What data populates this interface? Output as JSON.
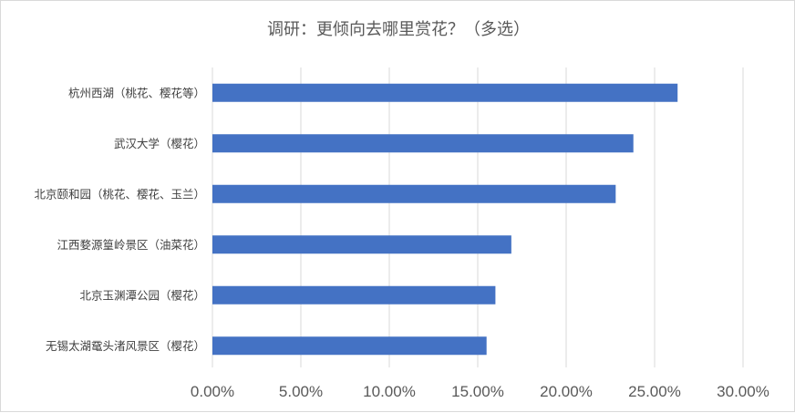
{
  "chart_data": {
    "type": "bar",
    "orientation": "horizontal",
    "title": "调研：更倾向去哪里赏花？（多选）",
    "categories": [
      "杭州西湖（桃花、樱花等）",
      "武汉大学（樱花）",
      "北京颐和园（桃花、樱花、玉兰）",
      "江西婺源篁岭景区（油菜花）",
      "北京玉渊潭公园（樱花）",
      "无锡太湖鼋头渚风景区（樱花）"
    ],
    "values": [
      0.263,
      0.238,
      0.228,
      0.169,
      0.16,
      0.155
    ],
    "xlim": [
      0,
      0.3
    ],
    "xticks": [
      "0.00%",
      "5.00%",
      "10.00%",
      "15.00%",
      "20.00%",
      "25.00%",
      "30.00%"
    ],
    "grid": "vertical",
    "legend": "none",
    "colors": {
      "bar": "#4472c4",
      "grid": "#d9d9d9",
      "text": "#595959"
    }
  }
}
